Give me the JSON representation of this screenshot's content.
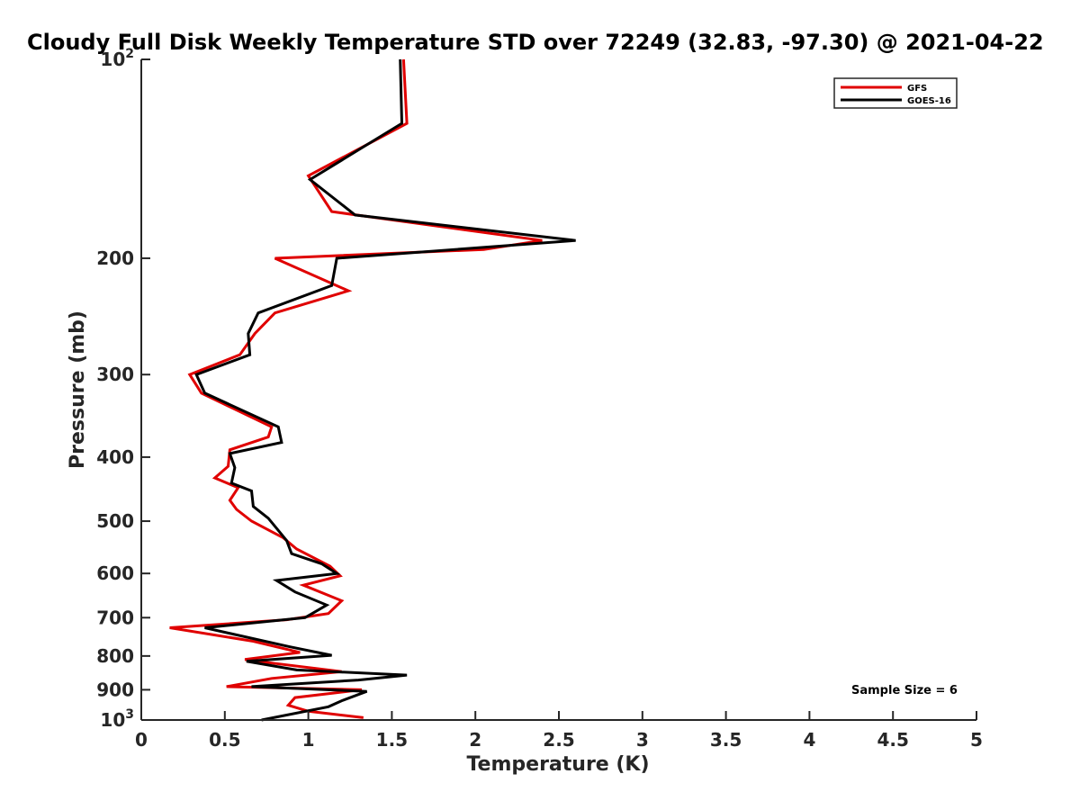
{
  "chart_data": {
    "type": "line",
    "title": "Cloudy Full Disk Weekly Temperature STD over 72249 (32.83, -97.30) @ 2021-04-22",
    "xlabel": "Temperature (K)",
    "ylabel": "Pressure (mb)",
    "xlim": [
      0,
      5
    ],
    "ylim": [
      100,
      1000
    ],
    "y_scale": "log",
    "y_reversed": true,
    "x_ticks": [
      0,
      0.5,
      1,
      1.5,
      2,
      2.5,
      3,
      3.5,
      4,
      4.5,
      5
    ],
    "x_tick_labels": [
      "0",
      "0.5",
      "1",
      "1.5",
      "2",
      "2.5",
      "3",
      "3.5",
      "4",
      "4.5",
      "5"
    ],
    "y_ticks": [
      100,
      200,
      300,
      400,
      500,
      600,
      700,
      800,
      900,
      1000
    ],
    "y_tick_labels": [
      {
        "base": "10",
        "exp": "2"
      },
      {
        "base": "200",
        "exp": ""
      },
      {
        "base": "300",
        "exp": ""
      },
      {
        "base": "400",
        "exp": ""
      },
      {
        "base": "500",
        "exp": ""
      },
      {
        "base": "600",
        "exp": ""
      },
      {
        "base": "700",
        "exp": ""
      },
      {
        "base": "800",
        "exp": ""
      },
      {
        "base": "900",
        "exp": ""
      },
      {
        "base": "10",
        "exp": "3"
      }
    ],
    "grid": false,
    "legend_position": "top-right",
    "annotation": "Sample Size = 6",
    "series": [
      {
        "name": "GFS",
        "color": "#e00000",
        "points": [
          [
            1.57,
            100
          ],
          [
            1.59,
            125
          ],
          [
            1.0,
            150
          ],
          [
            1.14,
            170
          ],
          [
            2.4,
            188
          ],
          [
            2.05,
            194
          ],
          [
            0.8,
            200
          ],
          [
            1.24,
            224
          ],
          [
            0.8,
            242
          ],
          [
            0.68,
            260
          ],
          [
            0.59,
            280
          ],
          [
            0.29,
            300
          ],
          [
            0.36,
            320
          ],
          [
            0.78,
            360
          ],
          [
            0.76,
            373
          ],
          [
            0.53,
            390
          ],
          [
            0.52,
            413
          ],
          [
            0.44,
            430
          ],
          [
            0.58,
            445
          ],
          [
            0.53,
            465
          ],
          [
            0.57,
            480
          ],
          [
            0.66,
            500
          ],
          [
            0.85,
            530
          ],
          [
            0.93,
            551
          ],
          [
            1.13,
            585
          ],
          [
            1.19,
            605
          ],
          [
            0.97,
            625
          ],
          [
            1.2,
            660
          ],
          [
            1.12,
            690
          ],
          [
            0.87,
            705
          ],
          [
            0.17,
            725
          ],
          [
            0.67,
            760
          ],
          [
            0.95,
            790
          ],
          [
            0.62,
            810
          ],
          [
            0.78,
            820
          ],
          [
            1.2,
            845
          ],
          [
            0.78,
            865
          ],
          [
            0.51,
            890
          ],
          [
            1.32,
            900
          ],
          [
            0.92,
            925
          ],
          [
            0.88,
            950
          ],
          [
            1.0,
            970
          ],
          [
            1.33,
            992
          ]
        ]
      },
      {
        "name": "GOES-16",
        "color": "#000000",
        "points": [
          [
            1.55,
            100
          ],
          [
            1.56,
            125
          ],
          [
            1.01,
            152
          ],
          [
            1.28,
            172
          ],
          [
            2.6,
            188
          ],
          [
            1.17,
            200
          ],
          [
            1.14,
            220
          ],
          [
            0.7,
            242
          ],
          [
            0.64,
            260
          ],
          [
            0.65,
            280
          ],
          [
            0.33,
            300
          ],
          [
            0.38,
            320
          ],
          [
            0.82,
            360
          ],
          [
            0.84,
            380
          ],
          [
            0.53,
            395
          ],
          [
            0.56,
            415
          ],
          [
            0.54,
            438
          ],
          [
            0.66,
            450
          ],
          [
            0.67,
            475
          ],
          [
            0.76,
            495
          ],
          [
            0.87,
            535
          ],
          [
            0.9,
            560
          ],
          [
            1.08,
            580
          ],
          [
            1.17,
            600
          ],
          [
            0.81,
            615
          ],
          [
            0.92,
            640
          ],
          [
            1.11,
            670
          ],
          [
            0.98,
            700
          ],
          [
            0.38,
            725
          ],
          [
            0.89,
            775
          ],
          [
            1.14,
            798
          ],
          [
            0.63,
            815
          ],
          [
            0.93,
            840
          ],
          [
            1.59,
            855
          ],
          [
            1.3,
            870
          ],
          [
            0.66,
            890
          ],
          [
            1.35,
            905
          ],
          [
            1.2,
            935
          ],
          [
            1.12,
            955
          ],
          [
            0.72,
            1000
          ]
        ]
      }
    ]
  }
}
